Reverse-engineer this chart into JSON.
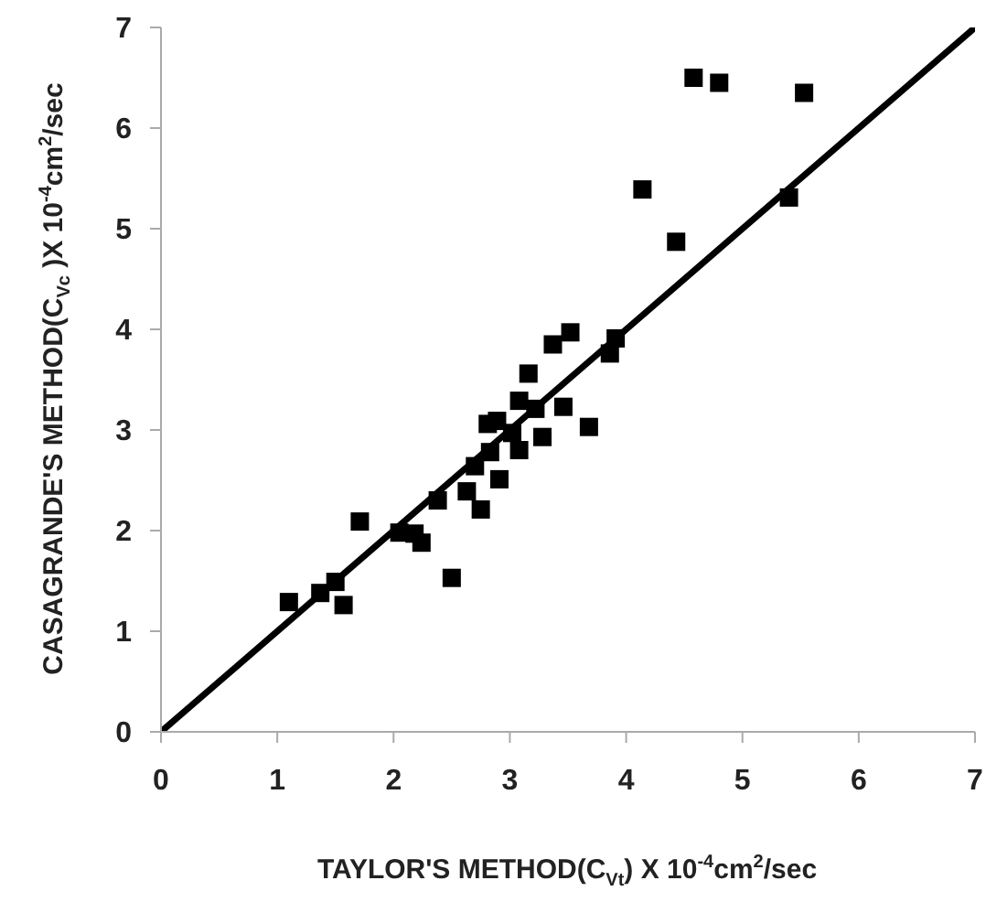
{
  "chart_data": {
    "type": "scatter",
    "xlabel": "TAYLOR'S METHOD(C$_{Vt}$) X 10$^{-4}$cm$^{2}$/sec",
    "ylabel": "CASAGRANDE'S METHOD(C$_{Vc}$ )X 10$^{-4}$cm$^{2}$/sec",
    "xlim": [
      0,
      7
    ],
    "ylim": [
      0,
      7
    ],
    "xticks": [
      0,
      1,
      2,
      3,
      4,
      5,
      6,
      7
    ],
    "yticks": [
      0,
      1,
      2,
      3,
      4,
      5,
      6,
      7
    ],
    "series": [
      {
        "marker": "square",
        "color": "#000000",
        "x": [
          1.1,
          1.37,
          1.5,
          1.57,
          1.71,
          2.05,
          2.18,
          2.24,
          2.5,
          2.38,
          2.63,
          2.75,
          2.7,
          2.91,
          2.83,
          2.81,
          2.89,
          3.02,
          3.08,
          3.08,
          3.22,
          3.28,
          3.46,
          3.16,
          3.37,
          3.52,
          3.68,
          3.86,
          3.91,
          4.58,
          4.8,
          5.53,
          4.14,
          4.43,
          5.4
        ],
        "values": [
          1.29,
          1.38,
          1.49,
          1.26,
          2.09,
          1.98,
          1.97,
          1.88,
          1.53,
          2.3,
          2.39,
          2.21,
          2.64,
          2.51,
          2.78,
          3.06,
          3.09,
          2.97,
          2.8,
          3.29,
          3.21,
          2.93,
          3.23,
          3.56,
          3.85,
          3.97,
          3.03,
          3.76,
          3.91,
          6.5,
          6.45,
          6.35,
          5.39,
          4.87,
          5.31
        ]
      },
      {
        "type": "line",
        "marker": "none",
        "color": "#000000",
        "x": [
          0,
          7
        ],
        "values": [
          0,
          7
        ]
      }
    ]
  }
}
